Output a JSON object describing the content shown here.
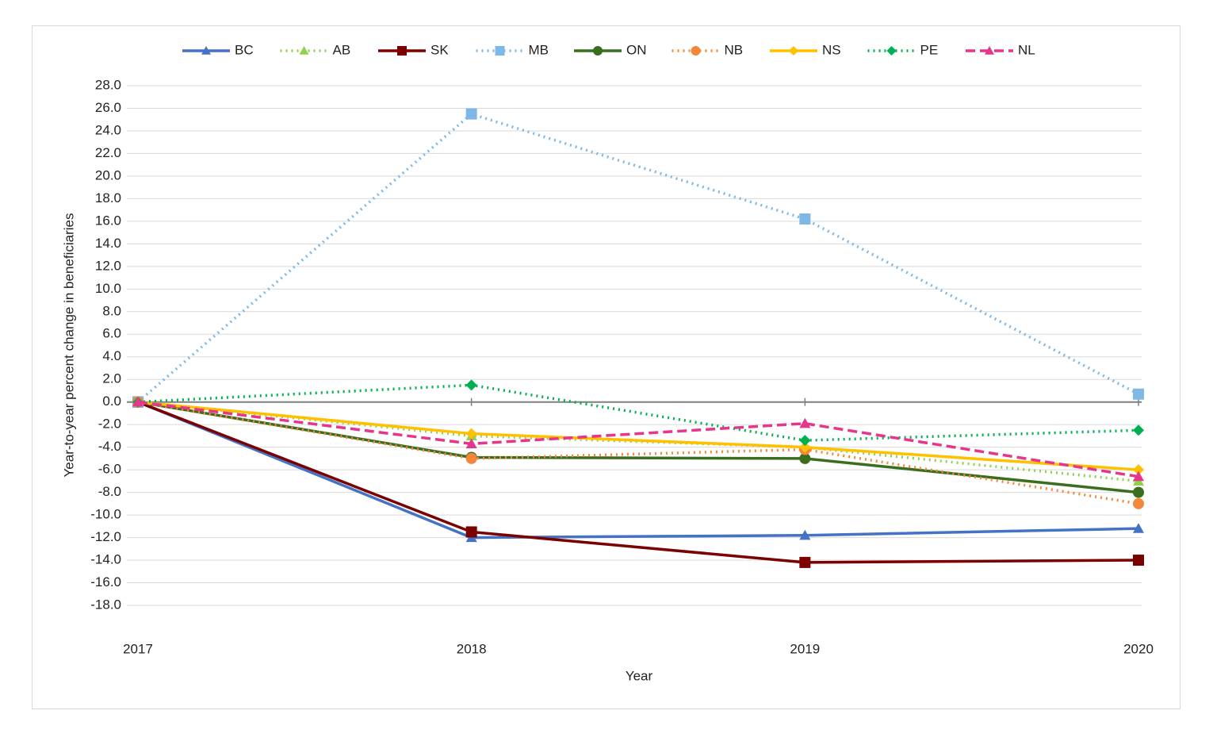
{
  "chart_data": {
    "type": "line",
    "x_label": "Year",
    "y_label": "Year-to-year percent change in beneficiaries",
    "categories": [
      "2017",
      "2018",
      "2019",
      "2020"
    ],
    "ylim": [
      -18,
      28
    ],
    "yticks": [
      {
        "value": 28,
        "label": "28.0"
      },
      {
        "value": 26,
        "label": "26.0"
      },
      {
        "value": 24,
        "label": "24.0"
      },
      {
        "value": 22,
        "label": "22.0"
      },
      {
        "value": 20,
        "label": "20.0"
      },
      {
        "value": 18,
        "label": "18.0"
      },
      {
        "value": 16,
        "label": "16.0"
      },
      {
        "value": 14,
        "label": "14.0"
      },
      {
        "value": 12,
        "label": "12.0"
      },
      {
        "value": 10,
        "label": "10.0"
      },
      {
        "value": 8,
        "label": "8.0"
      },
      {
        "value": 6,
        "label": "6.0"
      },
      {
        "value": 4,
        "label": "4.0"
      },
      {
        "value": 2,
        "label": "2.0"
      },
      {
        "value": 0,
        "label": "0.0"
      },
      {
        "value": -2,
        "label": "-2.0"
      },
      {
        "value": -4,
        "label": "-4.0"
      },
      {
        "value": -6,
        "label": "-6.0"
      },
      {
        "value": -8,
        "label": "-8.0"
      },
      {
        "value": -10,
        "label": "-10.0"
      },
      {
        "value": -12,
        "label": "-12.0"
      },
      {
        "value": -14,
        "label": "-14.0"
      },
      {
        "value": -16,
        "label": "-16.0"
      },
      {
        "value": -18,
        "label": "-18.0"
      }
    ],
    "grid": true,
    "legend": "top",
    "series": [
      {
        "name": "BC",
        "color": "#4472c4",
        "marker": "triangle",
        "dash": "solid",
        "values": [
          0,
          -12.0,
          -11.8,
          -11.2
        ]
      },
      {
        "name": "AB",
        "color": "#92d050",
        "marker": "triangle",
        "dash": "dot",
        "values": [
          0,
          -3.0,
          -4.0,
          -7.0
        ]
      },
      {
        "name": "SK",
        "color": "#7b0000",
        "marker": "square",
        "dash": "solid",
        "values": [
          0,
          -11.5,
          -14.2,
          -14.0
        ]
      },
      {
        "name": "MB",
        "color": "#7fb8e6",
        "marker": "square",
        "dash": "dot",
        "values": [
          0,
          25.5,
          16.2,
          0.7
        ]
      },
      {
        "name": "ON",
        "color": "#3a6e1f",
        "marker": "circle",
        "dash": "solid",
        "values": [
          0,
          -4.9,
          -5.0,
          -8.0
        ]
      },
      {
        "name": "NB",
        "color": "#f4873a",
        "marker": "circle",
        "dash": "dot",
        "values": [
          0,
          -5.0,
          -4.2,
          -9.0
        ]
      },
      {
        "name": "NS",
        "color": "#ffc000",
        "marker": "diamond",
        "dash": "solid",
        "values": [
          0,
          -2.8,
          -4.0,
          -6.0
        ]
      },
      {
        "name": "PE",
        "color": "#00b050",
        "marker": "diamond",
        "dash": "dot",
        "values": [
          0,
          1.5,
          -3.4,
          -2.5
        ]
      },
      {
        "name": "NL",
        "color": "#e6358b",
        "marker": "triangle",
        "dash": "dash",
        "values": [
          0,
          -3.7,
          -1.9,
          -6.6
        ]
      }
    ]
  }
}
